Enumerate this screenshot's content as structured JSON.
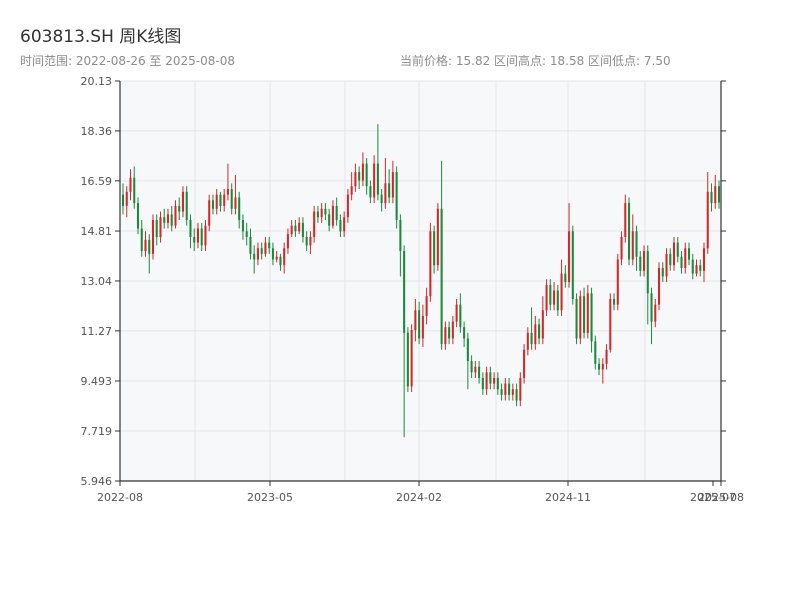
{
  "title": "603813.SH 周K线图",
  "subtitle": "时间范围: 2022-08-26 至 2025-08-08",
  "stats": "当前价格: 15.82   区间高点: 18.58   区间低点: 7.50",
  "colors": {
    "up": "#d62728",
    "down": "#1a8a3a",
    "plot_bg": "#f7f8fa",
    "grid": "#e3e6ea",
    "axis": "#333333"
  },
  "chart_data": {
    "type": "candlestick",
    "title": "603813.SH 周K线图",
    "ylim": [
      5.946,
      20.13
    ],
    "y_ticks": [
      "5.946",
      "7.719",
      "9.493",
      "11.27",
      "13.04",
      "14.81",
      "16.59",
      "18.36",
      "20.13"
    ],
    "x_ticks": [
      "2022-08",
      "2023-05",
      "2024-02",
      "2024-11",
      "2025-07",
      "2025-08"
    ],
    "grid": true,
    "series": [
      {
        "values": [
          [
            16.1,
            15.7,
            16.5,
            15.4
          ],
          [
            15.7,
            16.2,
            16.4,
            15.3
          ],
          [
            16.2,
            16.7,
            17.0,
            15.9
          ],
          [
            16.7,
            15.8,
            17.1,
            15.6
          ],
          [
            15.8,
            14.9,
            16.0,
            14.7
          ],
          [
            14.9,
            14.1,
            15.2,
            13.9
          ],
          [
            14.1,
            14.5,
            14.8,
            13.9
          ],
          [
            14.5,
            14.0,
            14.7,
            13.3
          ],
          [
            14.0,
            15.2,
            15.4,
            13.8
          ],
          [
            15.2,
            14.6,
            15.4,
            14.3
          ],
          [
            14.6,
            15.3,
            15.5,
            14.4
          ],
          [
            15.3,
            15.1,
            15.6,
            14.9
          ],
          [
            15.1,
            15.4,
            15.6,
            14.9
          ],
          [
            15.4,
            15.0,
            15.7,
            14.8
          ],
          [
            15.0,
            15.7,
            15.9,
            14.9
          ],
          [
            15.7,
            15.5,
            16.0,
            15.2
          ],
          [
            15.5,
            16.2,
            16.4,
            15.3
          ],
          [
            16.2,
            15.2,
            16.4,
            15.0
          ],
          [
            15.2,
            14.6,
            15.4,
            14.2
          ],
          [
            14.6,
            14.4,
            14.9,
            14.1
          ],
          [
            14.4,
            14.9,
            15.1,
            14.2
          ],
          [
            14.9,
            14.3,
            15.1,
            14.1
          ],
          [
            14.3,
            15.0,
            15.2,
            14.1
          ],
          [
            15.0,
            15.9,
            16.1,
            14.8
          ],
          [
            15.9,
            15.6,
            16.1,
            15.4
          ],
          [
            15.6,
            16.1,
            16.3,
            15.4
          ],
          [
            16.1,
            15.7,
            16.2,
            15.5
          ],
          [
            15.7,
            16.1,
            16.3,
            15.5
          ],
          [
            16.1,
            16.3,
            17.2,
            15.9
          ],
          [
            16.3,
            15.6,
            16.5,
            15.4
          ],
          [
            15.6,
            16.0,
            16.8,
            15.4
          ],
          [
            16.0,
            15.2,
            16.2,
            14.9
          ],
          [
            15.2,
            14.8,
            15.4,
            14.5
          ],
          [
            14.8,
            14.6,
            15.1,
            14.3
          ],
          [
            14.6,
            14.0,
            14.9,
            13.8
          ],
          [
            14.0,
            13.8,
            14.3,
            13.3
          ],
          [
            13.8,
            14.2,
            14.4,
            13.6
          ],
          [
            14.2,
            14.0,
            14.4,
            13.8
          ],
          [
            14.0,
            14.4,
            14.6,
            13.9
          ],
          [
            14.4,
            14.2,
            14.6,
            14.0
          ],
          [
            14.2,
            13.8,
            14.4,
            13.6
          ],
          [
            13.8,
            13.9,
            14.1,
            13.7
          ],
          [
            13.9,
            13.6,
            14.0,
            13.4
          ],
          [
            13.6,
            14.2,
            14.4,
            13.3
          ],
          [
            14.2,
            14.7,
            14.9,
            14.0
          ],
          [
            14.7,
            15.0,
            15.2,
            14.6
          ],
          [
            15.0,
            14.8,
            15.2,
            14.6
          ],
          [
            14.8,
            15.1,
            15.3,
            14.7
          ],
          [
            15.1,
            14.6,
            15.3,
            14.4
          ],
          [
            14.6,
            14.3,
            14.8,
            14.1
          ],
          [
            14.3,
            14.6,
            14.8,
            14.0
          ],
          [
            14.6,
            15.5,
            15.7,
            14.4
          ],
          [
            15.5,
            15.3,
            15.7,
            15.1
          ],
          [
            15.3,
            15.6,
            15.8,
            15.1
          ],
          [
            15.6,
            15.4,
            15.8,
            15.2
          ],
          [
            15.4,
            15.0,
            15.6,
            14.8
          ],
          [
            15.0,
            15.7,
            15.9,
            14.9
          ],
          [
            15.7,
            15.2,
            16.0,
            15.0
          ],
          [
            15.2,
            14.8,
            15.4,
            14.6
          ],
          [
            14.8,
            15.3,
            15.5,
            14.6
          ],
          [
            15.3,
            16.1,
            16.3,
            15.1
          ],
          [
            16.1,
            16.4,
            16.9,
            15.9
          ],
          [
            16.4,
            16.9,
            17.2,
            16.2
          ],
          [
            16.9,
            16.6,
            17.1,
            16.3
          ],
          [
            16.6,
            17.2,
            17.6,
            16.4
          ],
          [
            17.2,
            16.4,
            17.4,
            16.1
          ],
          [
            16.4,
            16.0,
            16.6,
            15.8
          ],
          [
            16.0,
            17.2,
            17.5,
            15.8
          ],
          [
            17.2,
            16.1,
            18.6,
            15.9
          ],
          [
            16.1,
            15.8,
            16.3,
            15.5
          ],
          [
            15.8,
            16.5,
            17.4,
            15.6
          ],
          [
            16.5,
            16.0,
            17.0,
            15.8
          ],
          [
            16.0,
            16.9,
            17.3,
            15.8
          ],
          [
            16.9,
            15.2,
            17.1,
            14.9
          ],
          [
            15.2,
            14.1,
            15.4,
            13.2
          ],
          [
            14.1,
            11.2,
            14.3,
            7.5
          ],
          [
            11.2,
            9.3,
            11.4,
            9.1
          ],
          [
            9.3,
            11.3,
            11.5,
            9.1
          ],
          [
            11.3,
            12.0,
            12.4,
            10.9
          ],
          [
            12.0,
            11.0,
            12.3,
            10.8
          ],
          [
            11.0,
            11.8,
            12.2,
            10.7
          ],
          [
            11.8,
            12.5,
            12.8,
            11.5
          ],
          [
            12.5,
            14.8,
            15.1,
            12.3
          ],
          [
            14.8,
            13.6,
            15.0,
            13.3
          ],
          [
            13.6,
            15.6,
            15.8,
            13.4
          ],
          [
            15.6,
            10.8,
            17.3,
            10.6
          ],
          [
            10.8,
            11.4,
            11.6,
            10.6
          ],
          [
            11.4,
            11.0,
            11.6,
            10.8
          ],
          [
            11.0,
            11.6,
            11.8,
            10.8
          ],
          [
            11.6,
            12.2,
            12.4,
            11.4
          ],
          [
            12.2,
            11.4,
            12.6,
            11.2
          ],
          [
            11.4,
            11.0,
            11.6,
            10.7
          ],
          [
            11.0,
            10.2,
            11.2,
            9.2
          ],
          [
            10.2,
            9.8,
            10.4,
            9.6
          ],
          [
            9.8,
            10.0,
            10.2,
            9.6
          ],
          [
            10.0,
            9.6,
            10.2,
            9.4
          ],
          [
            9.6,
            9.2,
            9.8,
            9.0
          ],
          [
            9.2,
            9.8,
            10.0,
            9.0
          ],
          [
            9.8,
            9.4,
            10.0,
            9.2
          ],
          [
            9.4,
            9.6,
            9.8,
            9.2
          ],
          [
            9.6,
            9.2,
            9.8,
            9.0
          ],
          [
            9.2,
            9.0,
            9.4,
            8.8
          ],
          [
            9.0,
            9.4,
            9.6,
            8.8
          ],
          [
            9.4,
            9.0,
            9.6,
            8.8
          ],
          [
            9.0,
            9.2,
            9.4,
            8.8
          ],
          [
            9.2,
            8.8,
            9.4,
            8.6
          ],
          [
            8.8,
            9.6,
            9.8,
            8.6
          ],
          [
            9.6,
            10.6,
            10.8,
            9.4
          ],
          [
            10.6,
            11.2,
            11.4,
            10.4
          ],
          [
            11.2,
            10.8,
            12.1,
            10.6
          ],
          [
            10.8,
            11.5,
            11.8,
            10.6
          ],
          [
            11.5,
            11.0,
            11.7,
            10.8
          ],
          [
            11.0,
            12.0,
            12.5,
            10.8
          ],
          [
            12.0,
            12.9,
            13.1,
            11.8
          ],
          [
            12.9,
            12.2,
            13.1,
            12.0
          ],
          [
            12.2,
            12.7,
            13.0,
            12.0
          ],
          [
            12.7,
            12.0,
            12.9,
            11.8
          ],
          [
            12.0,
            13.3,
            13.8,
            11.8
          ],
          [
            13.3,
            13.0,
            13.6,
            12.8
          ],
          [
            13.0,
            14.8,
            15.8,
            12.8
          ],
          [
            14.8,
            12.4,
            15.0,
            12.2
          ],
          [
            12.4,
            11.0,
            12.6,
            10.8
          ],
          [
            11.0,
            12.5,
            12.7,
            10.8
          ],
          [
            12.5,
            11.2,
            12.8,
            11.0
          ],
          [
            11.2,
            12.6,
            12.9,
            11.0
          ],
          [
            12.6,
            10.9,
            12.8,
            10.5
          ],
          [
            10.9,
            10.1,
            11.1,
            9.9
          ],
          [
            10.1,
            9.9,
            10.3,
            9.7
          ],
          [
            9.9,
            10.1,
            10.3,
            9.4
          ],
          [
            10.1,
            10.6,
            10.8,
            9.9
          ],
          [
            10.6,
            12.4,
            12.6,
            10.5
          ],
          [
            12.4,
            12.2,
            12.6,
            12.0
          ],
          [
            12.2,
            13.8,
            14.0,
            12.0
          ],
          [
            13.8,
            14.6,
            14.8,
            13.6
          ],
          [
            14.6,
            15.8,
            16.1,
            14.4
          ],
          [
            15.8,
            13.8,
            16.0,
            13.6
          ],
          [
            13.8,
            14.8,
            15.4,
            13.6
          ],
          [
            14.8,
            13.9,
            15.0,
            13.4
          ],
          [
            13.9,
            13.4,
            14.1,
            13.2
          ],
          [
            13.4,
            14.1,
            14.3,
            13.2
          ],
          [
            14.1,
            12.6,
            14.3,
            11.5
          ],
          [
            12.6,
            11.6,
            12.8,
            10.8
          ],
          [
            11.6,
            12.2,
            12.4,
            11.4
          ],
          [
            12.2,
            13.5,
            13.7,
            12.0
          ],
          [
            13.5,
            13.2,
            13.7,
            13.0
          ],
          [
            13.2,
            14.0,
            14.2,
            13.0
          ],
          [
            14.0,
            13.6,
            14.2,
            13.4
          ],
          [
            13.6,
            14.4,
            14.6,
            13.4
          ],
          [
            14.4,
            13.9,
            14.6,
            13.7
          ],
          [
            13.9,
            13.5,
            14.1,
            13.3
          ],
          [
            13.5,
            14.2,
            14.4,
            13.3
          ],
          [
            14.2,
            13.8,
            14.4,
            13.6
          ],
          [
            13.8,
            13.3,
            14.0,
            13.1
          ],
          [
            13.3,
            13.6,
            13.8,
            13.2
          ],
          [
            13.6,
            13.4,
            13.8,
            13.2
          ],
          [
            13.4,
            14.2,
            14.4,
            13.0
          ],
          [
            14.2,
            16.2,
            16.9,
            14.0
          ],
          [
            16.2,
            15.8,
            16.5,
            15.5
          ],
          [
            15.8,
            16.4,
            16.8,
            15.6
          ],
          [
            16.4,
            15.82,
            16.6,
            15.6
          ]
        ]
      }
    ]
  }
}
